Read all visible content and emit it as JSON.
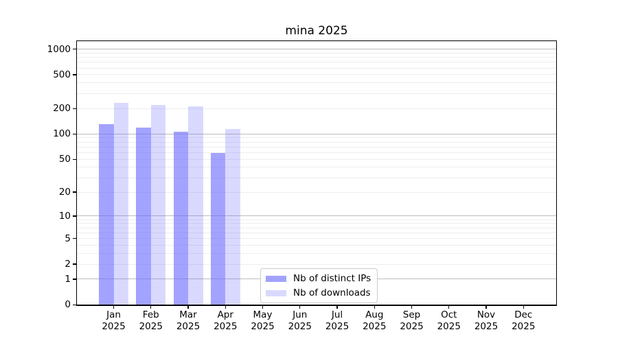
{
  "chart_data": {
    "type": "bar",
    "title": "mina 2025",
    "categories": [
      "Jan 2025",
      "Feb 2025",
      "Mar 2025",
      "Apr 2025",
      "May 2025",
      "Jun 2025",
      "Jul 2025",
      "Aug 2025",
      "Sep 2025",
      "Oct 2025",
      "Nov 2025",
      "Dec 2025"
    ],
    "series": [
      {
        "name": "Nb of distinct IPs",
        "base_color": "#6666ff",
        "alpha": 0.6,
        "values": [
          131,
          119,
          107,
          60,
          0,
          0,
          0,
          0,
          0,
          0,
          0,
          0
        ]
      },
      {
        "name": "Nb of downloads",
        "base_color": "#6666ff",
        "alpha": 0.25,
        "values": [
          234,
          219,
          211,
          115,
          0,
          0,
          0,
          0,
          0,
          0,
          0,
          0
        ]
      }
    ],
    "yscale": "log1p",
    "ylim": [
      0,
      1240
    ],
    "ytick_values": [
      1000,
      500,
      200,
      100,
      50,
      20,
      10,
      5,
      2,
      1,
      0
    ],
    "ytick_labels": [
      "1000",
      "500",
      "200",
      "100",
      "50",
      "20",
      "10",
      "5",
      "2",
      "1",
      "0"
    ],
    "grid": "horizontal",
    "legend_position": "lower center",
    "colors": {
      "axis": "#000000",
      "major_grid": "#bdbdbd",
      "minor_grid": "#ededed",
      "background": "#ffffff",
      "legend_border": "#cccccc"
    }
  }
}
